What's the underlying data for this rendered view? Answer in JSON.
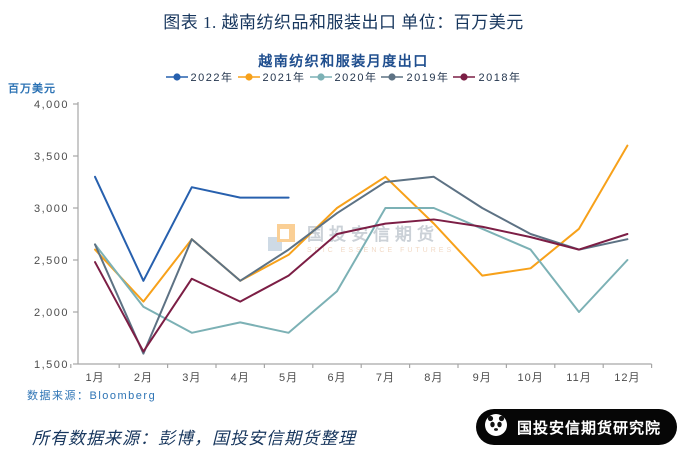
{
  "page": {
    "title": "图表 1. 越南纺织品和服装出口 单位：百万美元"
  },
  "chart": {
    "source_note": "数据来源：Bloomberg"
  },
  "chart_data": {
    "type": "line",
    "title": "越南纺织和服装月度出口",
    "categories": [
      "1月",
      "2月",
      "3月",
      "4月",
      "5月",
      "6月",
      "7月",
      "8月",
      "9月",
      "10月",
      "11月",
      "12月"
    ],
    "series": [
      {
        "name": "2022年",
        "color": "#2760AE",
        "values": [
          3300,
          2300,
          3200,
          3100,
          3100
        ]
      },
      {
        "name": "2021年",
        "color": "#F7A11A",
        "values": [
          2600,
          2100,
          2700,
          2300,
          2550,
          3000,
          3300,
          2850,
          2350,
          2420,
          2800,
          3600
        ]
      },
      {
        "name": "2020年",
        "color": "#7CB1B5",
        "values": [
          2650,
          2050,
          1800,
          1900,
          1800,
          2200,
          3000,
          3000,
          2800,
          2600,
          2000,
          2500
        ]
      },
      {
        "name": "2019年",
        "color": "#5D7284",
        "values": [
          2650,
          1600,
          2700,
          2300,
          2600,
          2950,
          3250,
          3300,
          3000,
          2750,
          2600,
          2700
        ]
      },
      {
        "name": "2018年",
        "color": "#7C1E45",
        "values": [
          2480,
          1620,
          2320,
          2100,
          2350,
          2750,
          2850,
          2890,
          2820,
          2720,
          2600,
          2750
        ]
      }
    ],
    "xlabel": "",
    "ylabel": "百万美元",
    "ylim": [
      1500,
      4000
    ],
    "ytick_step": 500,
    "yticks_labels": [
      "1,500",
      "2,000",
      "2,500",
      "3,000",
      "3,500",
      "4,000"
    ],
    "grid": false,
    "legend_position": "top"
  },
  "watermark": {
    "text": "国投安信期货",
    "subtext": "SDIC ESSENCE FUTURES"
  },
  "footer": {
    "left_note": "所有数据来源：彭博，国投安信期货整理",
    "badge_text": "国投安信期货研究院"
  }
}
